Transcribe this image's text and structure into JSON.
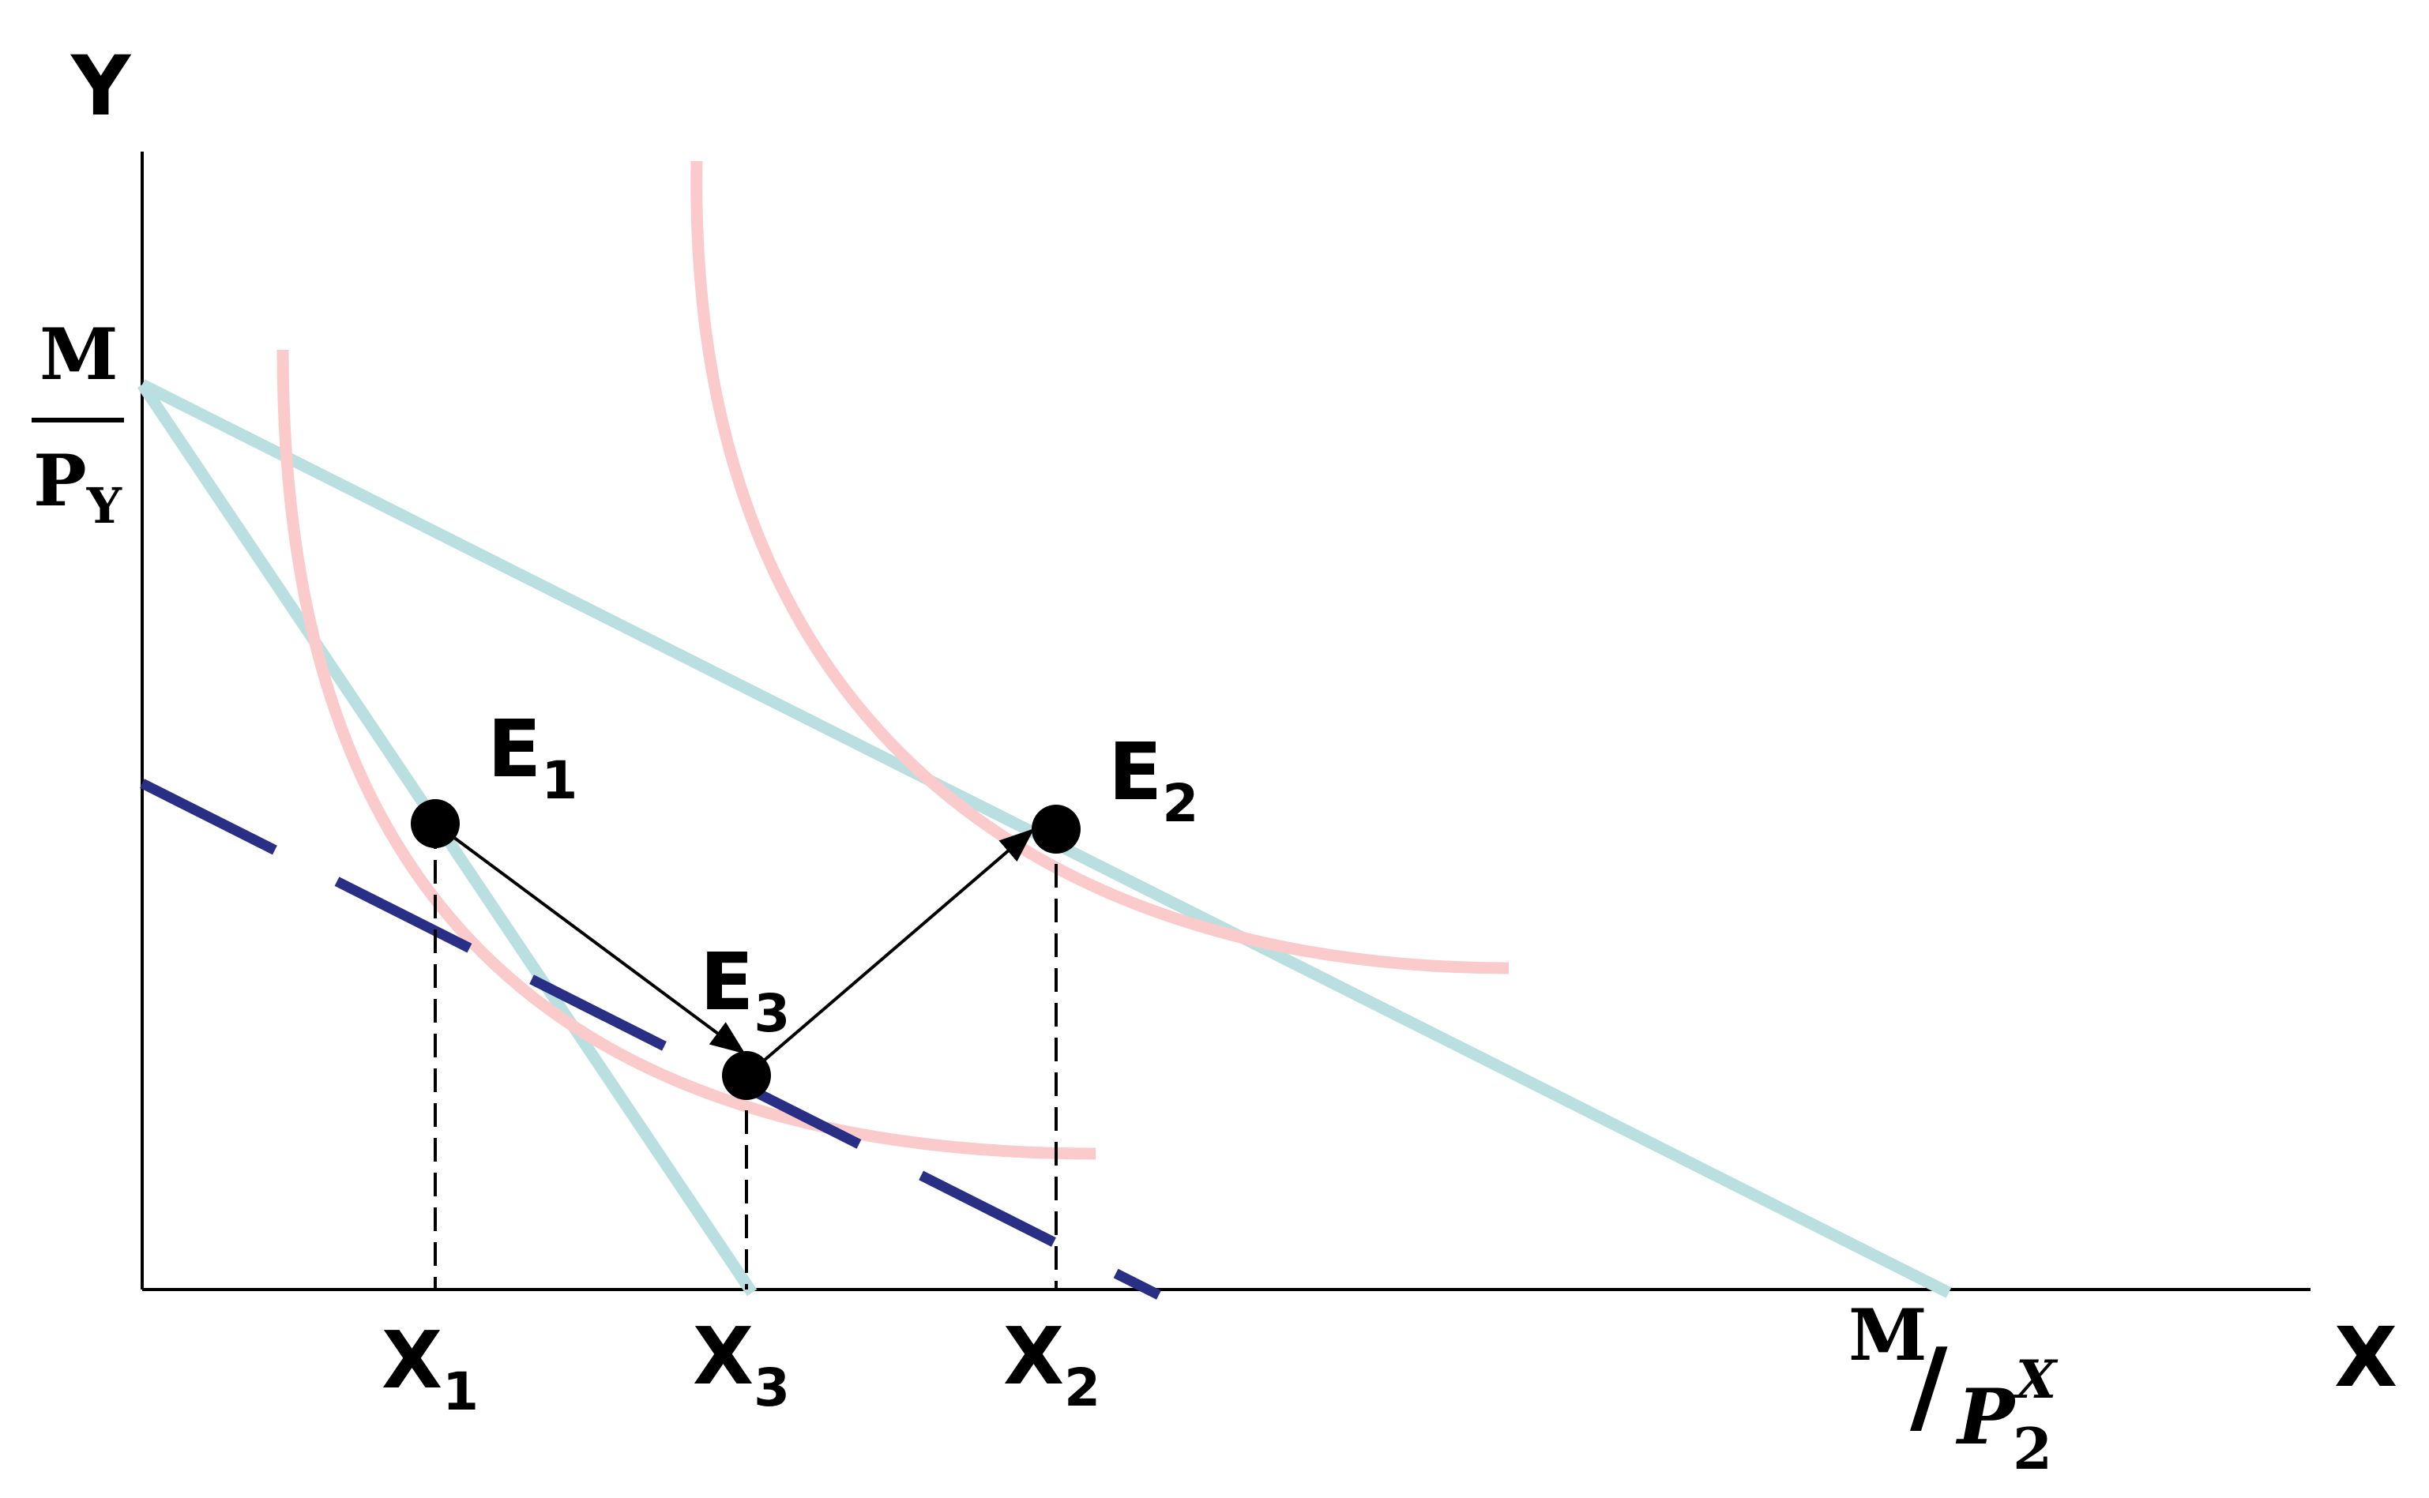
{
  "axes": {
    "y_label": "Y",
    "x_label": "X"
  },
  "y_intercept": {
    "numerator": "M",
    "denominator_main": "P",
    "denominator_sub": "Y"
  },
  "x_intercept": {
    "numerator": "M",
    "slash": "/",
    "denominator_main": "P",
    "denominator_sub": "2",
    "denominator_sup": "X"
  },
  "points": [
    {
      "main": "E",
      "sub": "1"
    },
    {
      "main": "E",
      "sub": "2"
    },
    {
      "main": "E",
      "sub": "3"
    }
  ],
  "x_ticks": [
    {
      "main": "X",
      "sub": "1"
    },
    {
      "main": "X",
      "sub": "3"
    },
    {
      "main": "X",
      "sub": "2"
    }
  ],
  "colors": {
    "budget_line": "#b9dfe0",
    "indifference_curve": "#fbcaca",
    "compensated_budget_line": "#2a2f86",
    "axis": "#000000"
  }
}
